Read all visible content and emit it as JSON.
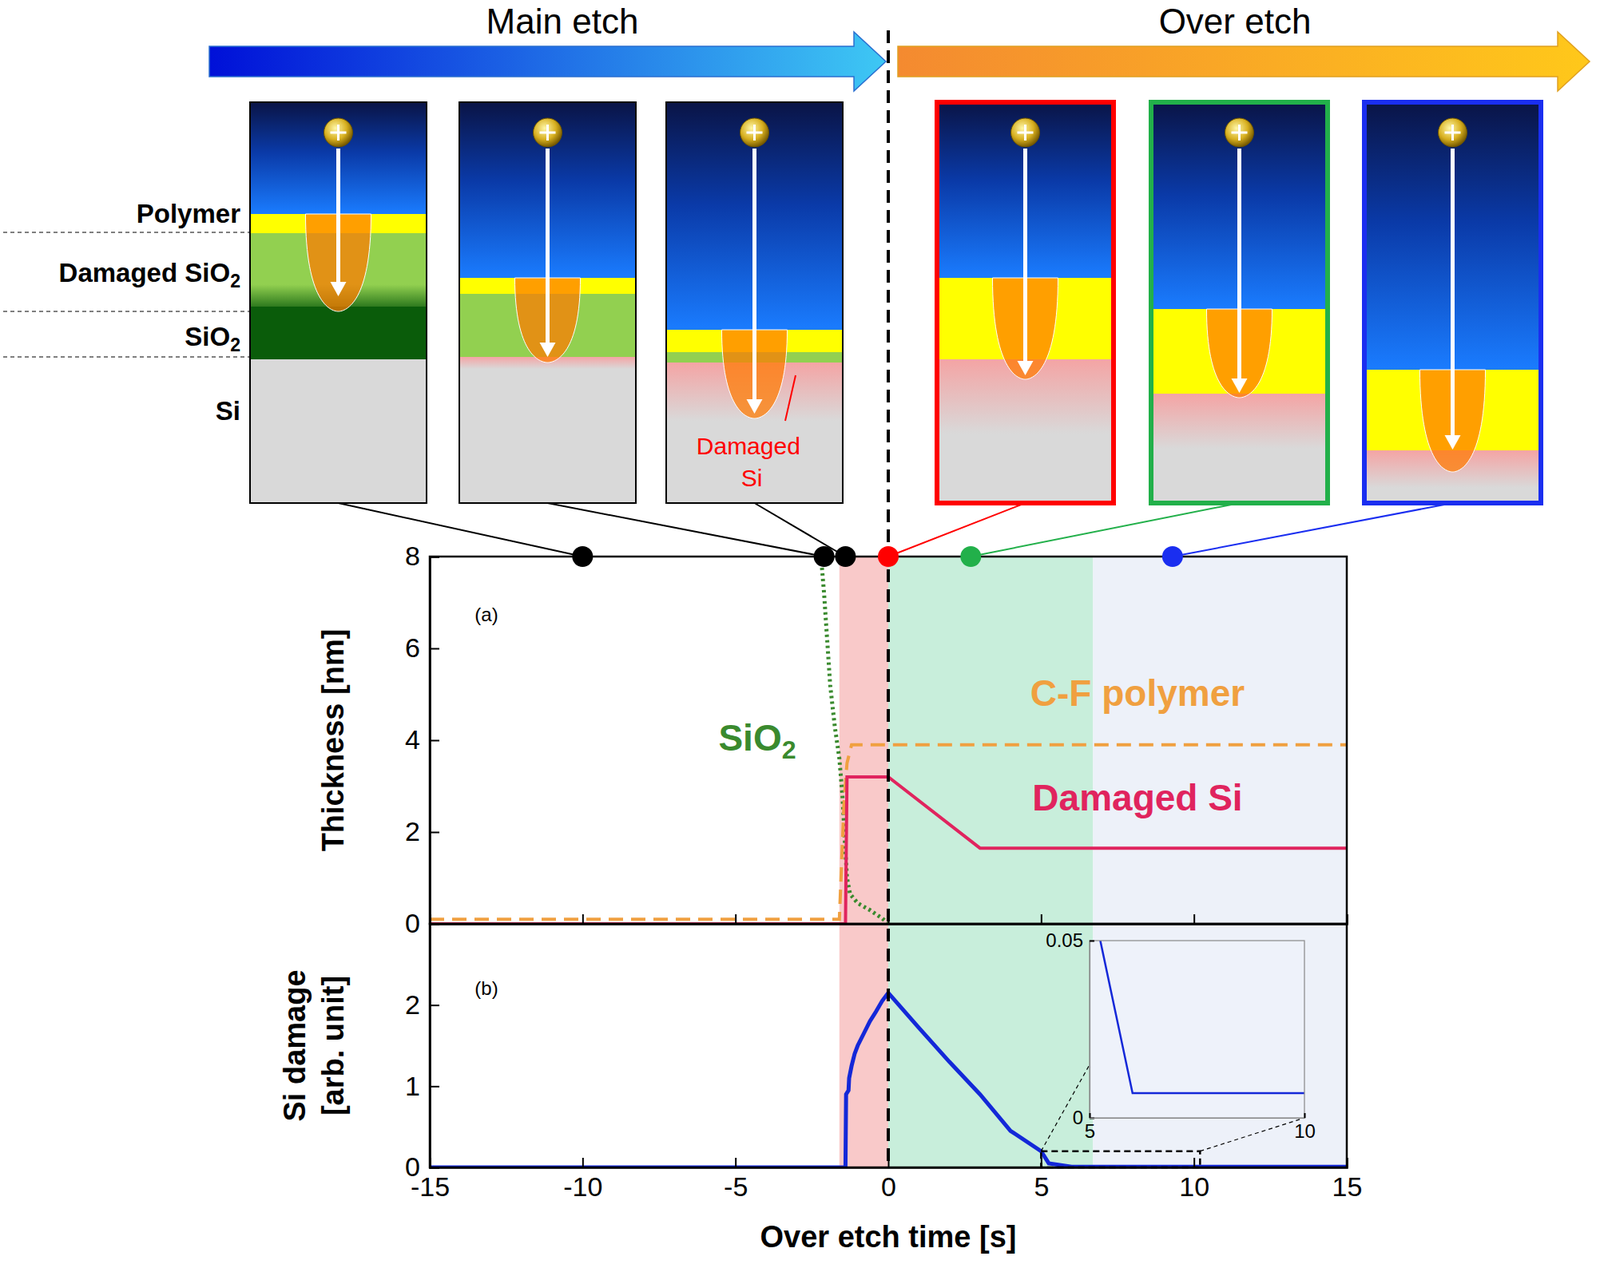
{
  "chart_data": [
    {
      "type": "line",
      "label": "(a)",
      "y_label": "Thickness [nm]",
      "xlim": [
        -15,
        15
      ],
      "xticks": [
        -15,
        -10,
        -5,
        0,
        5,
        10,
        15
      ],
      "ylim": [
        0,
        8
      ],
      "yticks": [
        0,
        2,
        4,
        6,
        8
      ],
      "tick_labels": "y",
      "regions": {
        "x": [
          [
            -1.6,
            0
          ],
          [
            0,
            6.7
          ],
          [
            6.7,
            15
          ]
        ],
        "colors": [
          "#f9c9c9",
          "#c8eedb",
          "#edf1f9"
        ]
      },
      "vline": 0,
      "snapshots": {
        "x": [
          -10,
          -2.1,
          -1.4,
          0,
          2.7,
          9.3
        ],
        "y": [
          8,
          8,
          8,
          8,
          8,
          8
        ],
        "colors": [
          "#000000",
          "#000000",
          "#000000",
          "#ff0000",
          "#22b04a",
          "#1a2ef0"
        ]
      },
      "series": [
        {
          "name": "SiO2",
          "color": "#3a8a2e",
          "line_style": "dotted",
          "x": [
            -2.2,
            -2.1,
            -2.0,
            -1.9,
            -1.75,
            -1.6,
            -1.5,
            -1.42,
            -1.35,
            -1.25,
            -1.0,
            -0.6,
            -0.2,
            0
          ],
          "values": [
            8,
            7.2,
            6.2,
            5.2,
            4.3,
            3.6,
            2.8,
            1.8,
            1.0,
            0.65,
            0.45,
            0.3,
            0.12,
            0
          ]
        },
        {
          "name": "C-F polymer",
          "color": "#f0a040",
          "line_style": "dashed",
          "x": [
            -15,
            -1.6,
            -1.45,
            -1.35,
            -1.2,
            15
          ],
          "values": [
            0.1,
            0.1,
            2.6,
            3.5,
            3.9,
            3.9
          ]
        },
        {
          "name": "Damaged Si",
          "color": "#e0245e",
          "line_style": "solid",
          "x": [
            -15,
            -1.4,
            -1.35,
            0,
            3.0,
            15
          ],
          "values": [
            0,
            0,
            3.2,
            3.2,
            1.65,
            1.65
          ]
        }
      ]
    },
    {
      "type": "line",
      "label": "(b)",
      "y_label": [
        "Si damage",
        "[arb. unit]"
      ],
      "x_label": "Over etch time [s]",
      "xlim": [
        -15,
        15
      ],
      "xticks": [
        -15,
        -10,
        -5,
        0,
        5,
        10,
        15
      ],
      "ylim": [
        0,
        3
      ],
      "yticks": [
        0,
        1,
        2
      ],
      "zoom_box": {
        "x": [
          5,
          10.2
        ],
        "y": [
          0,
          0.2
        ]
      },
      "inset": {
        "xlim": [
          5,
          10
        ],
        "xticks": [
          5,
          10
        ],
        "ylim": [
          0,
          0.05
        ],
        "yticks": [
          0,
          0.05
        ]
      },
      "series": [
        {
          "color": "#1428d8",
          "line_style": "solid",
          "x": [
            -15,
            -1.4,
            -1.38,
            -1.3,
            -1.28,
            -1.2,
            -1.1,
            -1.0,
            -0.8,
            -0.6,
            -0.4,
            -0.2,
            0,
            1,
            2,
            3,
            4,
            5,
            5.25,
            6,
            15
          ],
          "values": [
            0,
            0,
            0.9,
            0.95,
            1.1,
            1.25,
            1.4,
            1.5,
            1.65,
            1.8,
            1.92,
            2.05,
            2.15,
            1.72,
            1.3,
            0.9,
            0.45,
            0.2,
            0.05,
            0.007,
            0.007
          ]
        }
      ]
    }
  ],
  "diagram": {
    "phases": [
      "Main etch",
      "Over etch"
    ],
    "layers": [
      "Polymer",
      "Damaged SiO2",
      "SiO2",
      "Si"
    ],
    "callout": "Damaged Si"
  }
}
